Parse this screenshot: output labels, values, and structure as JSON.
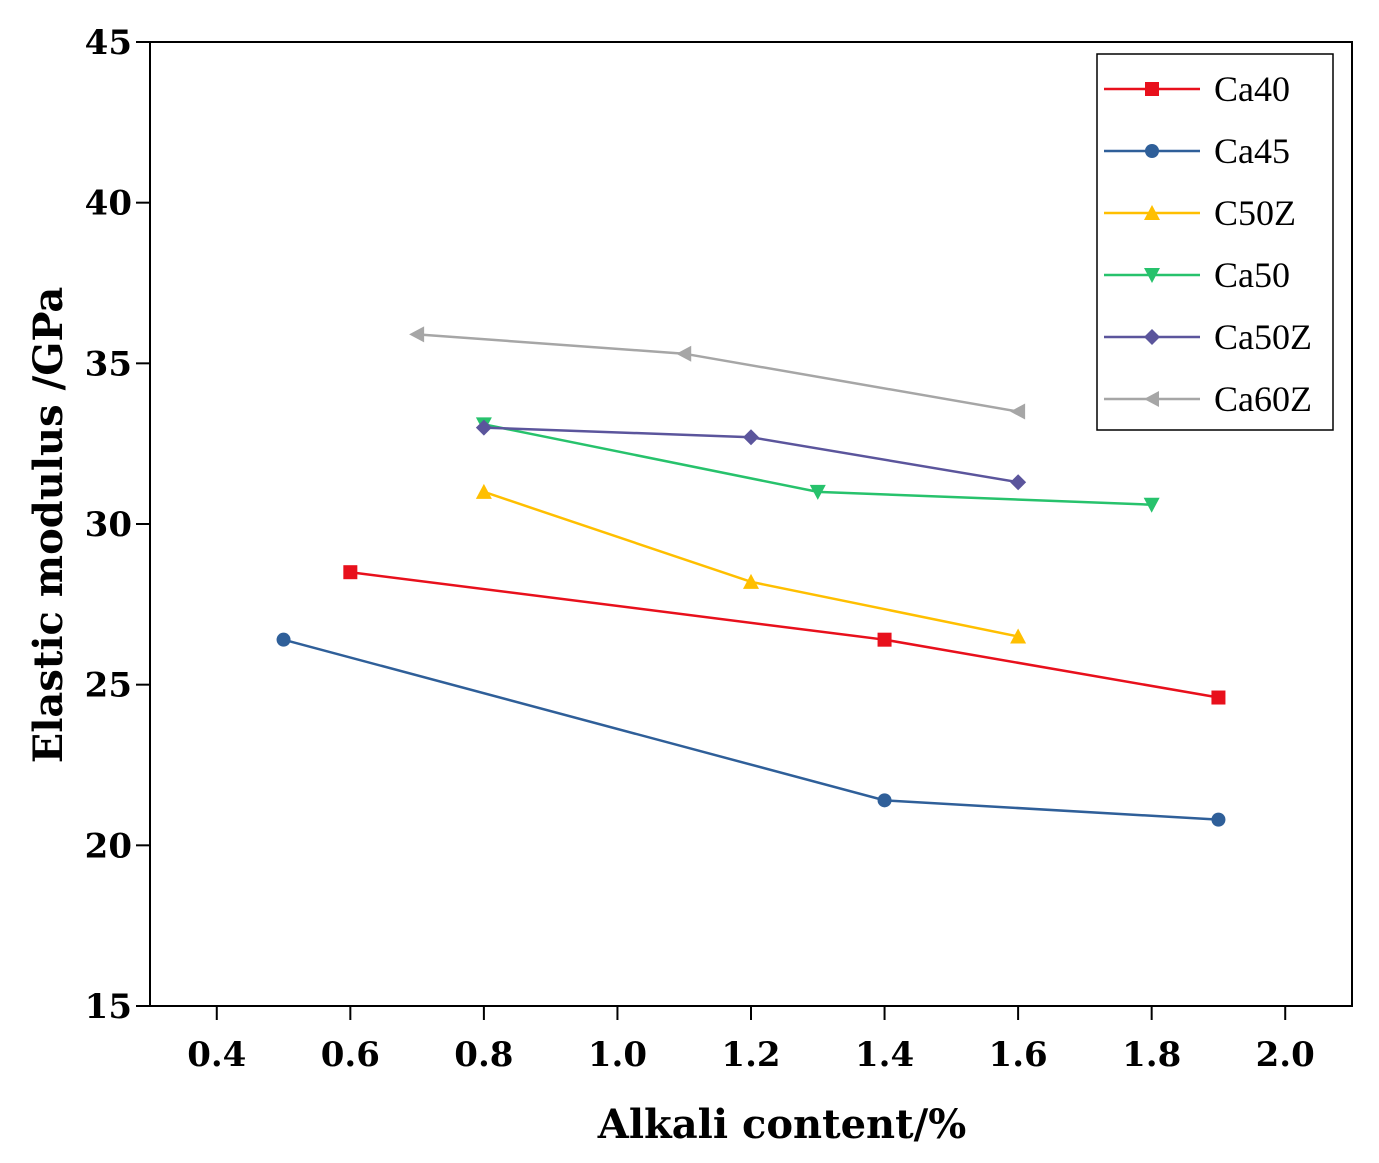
{
  "chart_data": {
    "type": "line",
    "title": "",
    "xlabel": "Alkali content/%",
    "ylabel": "Elastic modulus /GPa",
    "xlim": [
      0.3,
      2.1
    ],
    "ylim": [
      15,
      45
    ],
    "xticks": [
      0.4,
      0.6,
      0.8,
      1.0,
      1.2,
      1.4,
      1.6,
      1.8,
      2.0
    ],
    "xtick_labels": [
      "0.4",
      "0.6",
      "0.8",
      "1.0",
      "1.2",
      "1.4",
      "1.6",
      "1.8",
      "2.0"
    ],
    "yticks": [
      15,
      20,
      25,
      30,
      35,
      40,
      45
    ],
    "ytick_labels": [
      "15",
      "20",
      "25",
      "30",
      "35",
      "40",
      "45"
    ],
    "grid": false,
    "legend_position": "top-right",
    "series": [
      {
        "name": "Ca40",
        "color": "#e8101c",
        "marker": "square",
        "x": [
          0.6,
          1.4,
          1.9
        ],
        "y": [
          28.5,
          26.4,
          24.6
        ]
      },
      {
        "name": "Ca45",
        "color": "#2f5f99",
        "marker": "circle",
        "x": [
          0.5,
          1.4,
          1.9
        ],
        "y": [
          26.4,
          21.4,
          20.8
        ]
      },
      {
        "name": "C50Z",
        "color": "#ffbf00",
        "marker": "triangle-up",
        "x": [
          0.8,
          1.2,
          1.6
        ],
        "y": [
          31.0,
          28.2,
          26.5
        ]
      },
      {
        "name": "Ca50",
        "color": "#27c26c",
        "marker": "triangle-down",
        "x": [
          0.8,
          1.3,
          1.8
        ],
        "y": [
          33.1,
          31.0,
          30.6
        ]
      },
      {
        "name": "Ca50Z",
        "color": "#5b559c",
        "marker": "diamond",
        "x": [
          0.8,
          1.2,
          1.6
        ],
        "y": [
          33.0,
          32.7,
          31.3
        ]
      },
      {
        "name": "Ca60Z",
        "color": "#a6a6a6",
        "marker": "triangle-left",
        "x": [
          0.7,
          1.1,
          1.6
        ],
        "y": [
          35.9,
          35.3,
          33.5
        ]
      }
    ]
  }
}
